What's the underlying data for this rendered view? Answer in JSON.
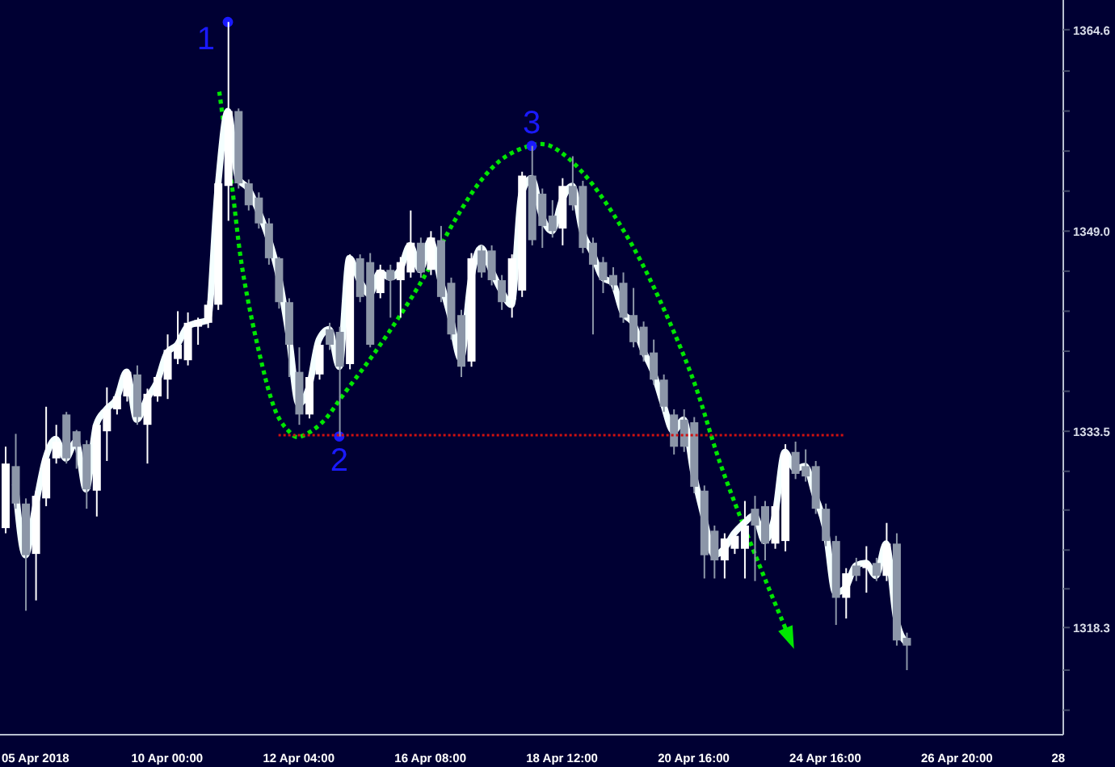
{
  "chart_data": {
    "type": "candlestick",
    "categories": [
      null,
      null,
      null,
      "05 Apr 2018",
      null,
      null,
      null,
      null,
      null,
      null,
      null,
      null,
      null,
      null,
      null,
      null,
      "10 Apr 00:00",
      null,
      null,
      null,
      null,
      null,
      null,
      null,
      null,
      null,
      null,
      null,
      null,
      "12 Apr 04:00",
      null,
      null,
      null,
      null,
      null,
      null,
      null,
      null,
      null,
      null,
      null,
      null,
      "16 Apr 08:00",
      null,
      null,
      null,
      null,
      null,
      null,
      null,
      null,
      null,
      null,
      null,
      null,
      "18 Apr 12:00",
      null,
      null,
      null,
      null,
      null,
      null,
      null,
      null,
      null,
      null,
      null,
      null,
      "20 Apr 16:00",
      null,
      null,
      null,
      null,
      null,
      null,
      null,
      null,
      null,
      null,
      null,
      null,
      "24 Apr 16:00",
      null,
      null,
      null,
      null,
      null,
      null,
      null,
      null,
      null,
      null,
      null,
      null,
      "26 Apr 20:00",
      null,
      null,
      null,
      null,
      null,
      null,
      null,
      null,
      null,
      "28"
    ],
    "ohlc": [
      [
        1326.0,
        1332.3,
        1325.6,
        1331.0
      ],
      [
        1330.8,
        1333.3,
        1327.5,
        1327.9
      ],
      [
        1327.9,
        1328.3,
        1319.6,
        1323.9
      ],
      [
        1324.0,
        1328.9,
        1320.4,
        1328.5
      ],
      [
        1328.3,
        1335.4,
        1327.7,
        1331.4
      ],
      [
        1331.4,
        1334.0,
        1331.0,
        1332.7
      ],
      [
        1334.8,
        1335.0,
        1331.0,
        1331.4
      ],
      [
        1333.5,
        1333.6,
        1330.6,
        1332.3
      ],
      [
        1332.5,
        1332.8,
        1327.5,
        1329.0
      ],
      [
        1328.9,
        1334.3,
        1326.9,
        1334.0
      ],
      [
        1333.5,
        1336.9,
        1331.2,
        1335.2
      ],
      [
        1335.2,
        1336.5,
        1334.8,
        1336.2
      ],
      [
        1336.2,
        1338.3,
        1335.8,
        1338.1
      ],
      [
        1337.9,
        1338.6,
        1334.0,
        1334.6
      ],
      [
        1334.0,
        1336.8,
        1331.0,
        1336.4
      ],
      [
        1336.2,
        1338.0,
        1335.8,
        1337.7
      ],
      [
        1337.5,
        1341.0,
        1336.0,
        1339.8
      ],
      [
        1339.1,
        1342.8,
        1338.7,
        1340.2
      ],
      [
        1339.0,
        1342.7,
        1338.6,
        1341.9
      ],
      [
        1341.6,
        1342.3,
        1340.2,
        1342.1
      ],
      [
        1341.9,
        1343.6,
        1341.5,
        1343.3
      ],
      [
        1343.3,
        1353.0,
        1342.9,
        1352.7
      ],
      [
        1352.5,
        1365.2,
        1349.8,
        1358.3
      ],
      [
        1358.3,
        1358.5,
        1352.3,
        1352.7
      ],
      [
        1352.7,
        1353.0,
        1350.6,
        1351.0
      ],
      [
        1351.6,
        1352.0,
        1349.2,
        1349.6
      ],
      [
        1349.6,
        1350.0,
        1346.4,
        1346.9
      ],
      [
        1346.9,
        1347.0,
        1343.0,
        1343.5
      ],
      [
        1343.5,
        1343.8,
        1337.7,
        1340.2
      ],
      [
        1338.1,
        1340.0,
        1334.0,
        1334.8
      ],
      [
        1334.8,
        1338.0,
        1334.5,
        1337.7
      ],
      [
        1337.9,
        1340.5,
        1337.5,
        1340.2
      ],
      [
        1341.4,
        1341.9,
        1339.8,
        1340.2
      ],
      [
        1341.2,
        1341.6,
        1333.1,
        1338.5
      ],
      [
        1338.7,
        1347.2,
        1338.3,
        1346.9
      ],
      [
        1346.9,
        1347.2,
        1343.5,
        1343.9
      ],
      [
        1346.6,
        1347.3,
        1340.0,
        1340.2
      ],
      [
        1344.2,
        1346.4,
        1343.8,
        1346.0
      ],
      [
        1346.0,
        1346.4,
        1342.3,
        1345.2
      ],
      [
        1345.2,
        1347.0,
        1342.3,
        1346.6
      ],
      [
        1345.8,
        1350.6,
        1345.4,
        1348.1
      ],
      [
        1348.1,
        1348.5,
        1345.4,
        1345.8
      ],
      [
        1346.0,
        1349.0,
        1345.6,
        1348.5
      ],
      [
        1348.3,
        1349.4,
        1343.5,
        1343.9
      ],
      [
        1345.0,
        1345.4,
        1340.6,
        1341.0
      ],
      [
        1342.5,
        1342.9,
        1337.7,
        1338.5
      ],
      [
        1338.9,
        1347.3,
        1338.5,
        1346.9
      ],
      [
        1347.5,
        1347.9,
        1345.4,
        1345.8
      ],
      [
        1347.5,
        1347.9,
        1344.8,
        1345.2
      ],
      [
        1345.2,
        1345.6,
        1342.9,
        1343.5
      ],
      [
        1343.7,
        1347.2,
        1342.3,
        1346.9
      ],
      [
        1344.4,
        1353.6,
        1343.9,
        1353.3
      ],
      [
        1353.3,
        1355.6,
        1347.9,
        1348.3
      ],
      [
        1351.9,
        1352.3,
        1347.7,
        1349.4
      ],
      [
        1350.2,
        1351.4,
        1348.5,
        1349.0
      ],
      [
        1349.2,
        1353.1,
        1347.9,
        1352.5
      ],
      [
        1352.5,
        1354.8,
        1350.6,
        1351.0
      ],
      [
        1352.5,
        1352.9,
        1347.3,
        1347.7
      ],
      [
        1348.1,
        1348.5,
        1341.0,
        1346.4
      ],
      [
        1346.6,
        1347.0,
        1344.2,
        1345.2
      ],
      [
        1345.6,
        1346.2,
        1344.4,
        1344.8
      ],
      [
        1345.0,
        1345.8,
        1341.9,
        1342.3
      ],
      [
        1342.5,
        1344.6,
        1340.0,
        1340.4
      ],
      [
        1341.6,
        1342.0,
        1338.9,
        1339.4
      ],
      [
        1339.6,
        1340.6,
        1337.1,
        1337.5
      ],
      [
        1337.5,
        1337.9,
        1335.0,
        1335.4
      ],
      [
        1334.8,
        1335.2,
        1331.7,
        1332.3
      ],
      [
        1334.4,
        1335.2,
        1331.9,
        1332.3
      ],
      [
        1334.2,
        1334.6,
        1328.7,
        1329.2
      ],
      [
        1328.9,
        1329.3,
        1322.1,
        1323.9
      ],
      [
        1325.8,
        1326.2,
        1322.1,
        1323.5
      ],
      [
        1323.5,
        1325.6,
        1322.1,
        1325.2
      ],
      [
        1324.4,
        1325.8,
        1324.0,
        1325.4
      ],
      [
        1324.4,
        1328.1,
        1322.1,
        1326.2
      ],
      [
        1327.5,
        1328.5,
        1321.9,
        1326.2
      ],
      [
        1327.7,
        1328.1,
        1323.5,
        1324.8
      ],
      [
        1324.8,
        1328.1,
        1324.4,
        1327.7
      ],
      [
        1325.0,
        1332.5,
        1324.2,
        1331.9
      ],
      [
        1331.9,
        1332.7,
        1329.8,
        1330.2
      ],
      [
        1330.8,
        1332.1,
        1329.6,
        1330.0
      ],
      [
        1330.8,
        1331.2,
        1327.1,
        1327.5
      ],
      [
        1327.5,
        1327.9,
        1324.6,
        1325.0
      ],
      [
        1325.0,
        1325.4,
        1318.5,
        1320.6
      ],
      [
        1320.6,
        1322.9,
        1319.0,
        1322.5
      ],
      [
        1323.1,
        1323.7,
        1321.9,
        1322.3
      ],
      [
        1322.9,
        1324.6,
        1321.0,
        1323.3
      ],
      [
        1323.3,
        1323.7,
        1321.9,
        1322.3
      ],
      [
        1322.3,
        1326.4,
        1321.9,
        1324.8
      ],
      [
        1324.8,
        1325.6,
        1316.9,
        1317.3
      ],
      [
        1317.5,
        1317.9,
        1315.0,
        1316.9
      ],
      null,
      null,
      null,
      null,
      null,
      null,
      null,
      null,
      null,
      null,
      null,
      null,
      null,
      null,
      null
    ],
    "colors": [
      "#ffffff",
      "#8c96a8",
      "#8c96a8",
      "#ffffff",
      "#ffffff",
      "#ffffff",
      "#8c96a8",
      "#8c96a8",
      "#8c96a8",
      "#ffffff",
      "#ffffff",
      "#ffffff",
      "#ffffff",
      "#8c96a8",
      "#ffffff",
      "#ffffff",
      "#ffffff",
      "#ffffff",
      "#ffffff",
      "#ffffff",
      "#ffffff",
      "#ffffff",
      "#ffffff",
      "#8c96a8",
      "#8c96a8",
      "#8c96a8",
      "#8c96a8",
      "#8c96a8",
      "#8c96a8",
      "#8c96a8",
      "#ffffff",
      "#ffffff",
      "#8c96a8",
      "#8c96a8",
      "#ffffff",
      "#8c96a8",
      "#8c96a8",
      "#ffffff",
      "#8c96a8",
      "#ffffff",
      "#ffffff",
      "#8c96a8",
      "#ffffff",
      "#8c96a8",
      "#8c96a8",
      "#8c96a8",
      "#ffffff",
      "#8c96a8",
      "#8c96a8",
      "#8c96a8",
      "#ffffff",
      "#ffffff",
      "#8c96a8",
      "#8c96a8",
      "#8c96a8",
      "#ffffff",
      "#8c96a8",
      "#8c96a8",
      "#8c96a8",
      "#8c96a8",
      "#8c96a8",
      "#8c96a8",
      "#8c96a8",
      "#8c96a8",
      "#8c96a8",
      "#8c96a8",
      "#8c96a8",
      "#8c96a8",
      "#8c96a8",
      "#8c96a8",
      "#8c96a8",
      "#ffffff",
      "#ffffff",
      "#ffffff",
      "#8c96a8",
      "#8c96a8",
      "#ffffff",
      "#ffffff",
      "#8c96a8",
      "#8c96a8",
      "#8c96a8",
      "#8c96a8",
      "#8c96a8",
      "#ffffff",
      "#8c96a8",
      "#ffffff",
      "#8c96a8",
      "#ffffff",
      "#8c96a8",
      "#8c96a8",
      null,
      null,
      null,
      null,
      null,
      null,
      null,
      null,
      null,
      null,
      null,
      null,
      null,
      null,
      null
    ],
    "series": [
      {
        "type": "line",
        "color": "#f4ffff",
        "values": [
          null,
          1329.4,
          1323.9,
          1327.7,
          1331.4,
          1332.9,
          1331.4,
          1332.7,
          1329.0,
          1334.0,
          1335.2,
          1336.0,
          1338.1,
          1334.4,
          1336.0,
          1337.3,
          1339.6,
          1340.2,
          1341.6,
          1341.9,
          1342.1,
          1352.3,
          1358.3,
          1353.1,
          1352.3,
          1350.6,
          1348.5,
          1345.6,
          1341.0,
          1335.6,
          1336.9,
          1340.6,
          1341.4,
          1338.5,
          1346.9,
          1345.2,
          1344.1,
          1345.8,
          1345.4,
          1346.0,
          1347.9,
          1346.0,
          1348.3,
          1345.2,
          1342.3,
          1339.1,
          1345.2,
          1347.7,
          1346.0,
          1344.4,
          1343.3,
          1351.9,
          1353.1,
          1350.2,
          1349.0,
          1351.4,
          1352.5,
          1349.0,
          1347.3,
          1345.4,
          1345.0,
          1342.7,
          1341.9,
          1339.8,
          1338.1,
          1335.6,
          1333.5,
          1334.4,
          1330.2,
          1326.9,
          1323.9,
          1324.4,
          1325.6,
          1326.4,
          1327.0,
          1325.0,
          1326.9,
          1331.9,
          1330.6,
          1330.8,
          1328.5,
          1326.0,
          1321.0,
          1321.4,
          1323.1,
          1323.3,
          1322.3,
          1324.8,
          1319.0,
          1317.1,
          null,
          null,
          null,
          null,
          null,
          null,
          null,
          null,
          null,
          null,
          null,
          null,
          null,
          null,
          null
        ]
      },
      {
        "type": "line",
        "color": "#d01010",
        "line_style": "dotted",
        "values": [
          null,
          null,
          null,
          null,
          null,
          null,
          null,
          null,
          null,
          null,
          null,
          null,
          null,
          null,
          null,
          null,
          null,
          null,
          null,
          null,
          null,
          null,
          null,
          null,
          null,
          null,
          null,
          1333.2,
          1333.2,
          1333.2,
          1333.2,
          1333.2,
          1333.2,
          1333.2,
          1333.2,
          1333.2,
          1333.2,
          1333.2,
          1333.2,
          1333.2,
          1333.2,
          1333.2,
          1333.2,
          1333.2,
          1333.2,
          1333.2,
          1333.2,
          1333.2,
          1333.2,
          1333.2,
          1333.2,
          1333.2,
          1333.2,
          1333.2,
          1333.2,
          1333.2,
          1333.2,
          1333.2,
          1333.2,
          1333.2,
          1333.2,
          1333.2,
          1333.2,
          1333.2,
          1333.2,
          1333.2,
          1333.2,
          1333.2,
          1333.2,
          1333.2,
          1333.2,
          1333.2,
          1333.2,
          1333.2,
          1333.2,
          1333.2,
          1333.2,
          1333.2,
          1333.2,
          1333.2,
          1333.2,
          1333.2,
          1333.2,
          1333.2,
          null,
          null,
          null,
          null,
          null,
          null,
          null,
          null,
          null,
          null,
          null,
          null,
          null,
          null,
          null,
          null,
          null,
          null,
          null,
          null,
          null
        ]
      },
      {
        "type": "scatter",
        "color": "#1a1aff",
        "marker": "circle",
        "values": [
          null,
          null,
          null,
          null,
          null,
          null,
          null,
          null,
          null,
          null,
          null,
          null,
          null,
          null,
          null,
          null,
          null,
          null,
          null,
          null,
          null,
          null,
          1365.2,
          null,
          null,
          null,
          null,
          null,
          null,
          null,
          null,
          null,
          null,
          1333.1,
          null,
          null,
          null,
          null,
          null,
          null,
          null,
          null,
          null,
          null,
          null,
          null,
          null,
          null,
          null,
          null,
          null,
          null,
          1355.6,
          null,
          null,
          null,
          null,
          null,
          null,
          null,
          null,
          null,
          null,
          null,
          null,
          null,
          null,
          null,
          null,
          null,
          null,
          null,
          null,
          null,
          null,
          null,
          null,
          null,
          null,
          null,
          null,
          null,
          null,
          null,
          null,
          null,
          null,
          null,
          null,
          null,
          null,
          null,
          null,
          null,
          null,
          null,
          null,
          null,
          null,
          null,
          null,
          null,
          null,
          null,
          null
        ]
      }
    ],
    "annotations": [
      "1",
      "2",
      "3"
    ],
    "ylim": [
      1310,
      1366.9
    ],
    "yticks": [
      1364.6,
      {
        "value": 1361.4,
        "label": null
      },
      {
        "value": 1358.3,
        "label": null
      },
      {
        "value": 1355.2,
        "label": null
      },
      {
        "value": 1352.1,
        "label": null
      },
      {
        "value": 1349,
        "label": "1349.0"
      },
      {
        "value": 1345.9,
        "label": null
      },
      {
        "value": 1342.8,
        "label": null
      },
      {
        "value": 1339.7,
        "label": null
      },
      {
        "value": 1336.6,
        "label": null
      },
      1333.5,
      {
        "value": 1330.4,
        "label": null
      },
      {
        "value": 1327.4,
        "label": null
      },
      {
        "value": 1324.3,
        "label": null
      },
      {
        "value": 1321.3,
        "label": null
      },
      1318.3,
      {
        "value": 1315.0,
        "label": null
      },
      {
        "value": 1311.9,
        "label": null
      }
    ]
  }
}
